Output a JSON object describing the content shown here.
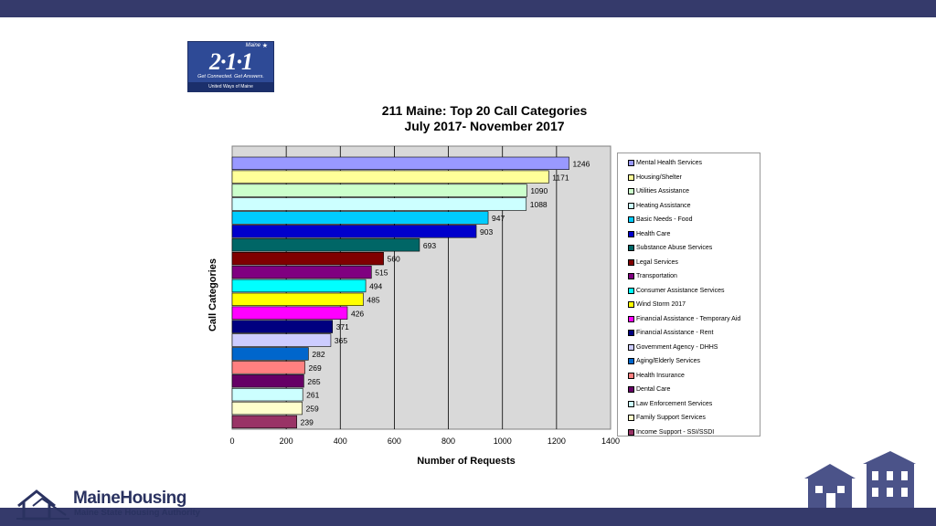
{
  "logo211": {
    "state": "Maine",
    "number": "2·1·1",
    "tagline": "Get Connected. Get Answers.",
    "org": "United Ways of Maine"
  },
  "footer_logo": {
    "name": "MaineHousing",
    "subtitle": "Maine State Housing Authority"
  },
  "chart_data": {
    "type": "bar",
    "orientation": "horizontal",
    "title": "211 Maine: Top 20 Call Categories",
    "subtitle": "July 2017- November 2017",
    "xlabel": "Number of Requests",
    "ylabel": "Call Categories",
    "xlim": [
      0,
      1400
    ],
    "xticks": [
      "0",
      "200",
      "400",
      "600",
      "800",
      "1000",
      "1200",
      "1400"
    ],
    "grid": "vertical",
    "legend_position": "right",
    "categories": [
      "Mental Health Services",
      "Housing/Shelter",
      "Utilities Assistance",
      "Heating Assistance",
      "Basic Needs - Food",
      "Health Care",
      "Substance Abuse Services",
      "Legal Services",
      "Transportation",
      "Consumer Assistance Services",
      "Wind Storm 2017",
      "Financial Assistance - Temporary Aid",
      "Financial Assistance - Rent",
      "Government Agency - DHHS",
      "Aging/Elderly Services",
      "Health Insurance",
      "Dental Care",
      "Law Enforcement Services",
      "Family Support Services",
      "Income Support - SSI/SSDI"
    ],
    "values": [
      1246,
      1171,
      1090,
      1088,
      947,
      903,
      693,
      560,
      515,
      494,
      485,
      426,
      371,
      365,
      282,
      269,
      265,
      261,
      259,
      239
    ],
    "colors": [
      "#9999ff",
      "#ffff99",
      "#ccffcc",
      "#ccffff",
      "#00ccff",
      "#0000cc",
      "#006666",
      "#800000",
      "#800080",
      "#00ffff",
      "#ffff00",
      "#ff00ff",
      "#000080",
      "#ccccff",
      "#0066cc",
      "#ff8080",
      "#660066",
      "#ccffff",
      "#ffffcc",
      "#993366"
    ]
  }
}
